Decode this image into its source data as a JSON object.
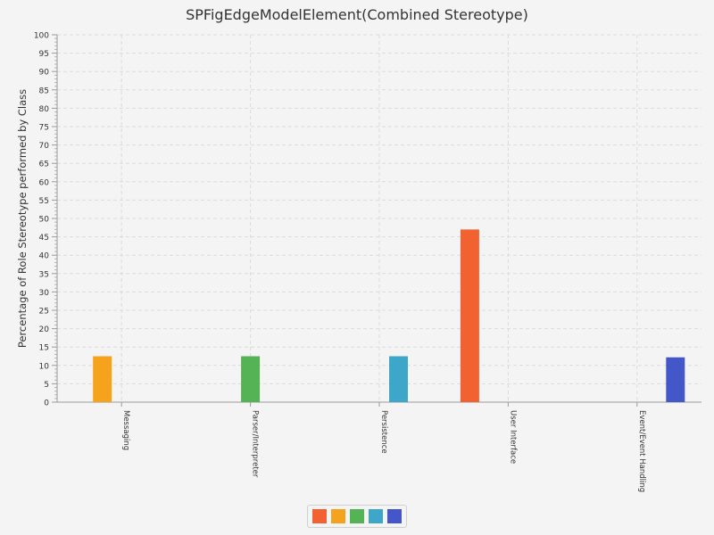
{
  "chart_data": {
    "type": "bar",
    "title": "SPFigEdgeModelElement(Combined Stereotype)",
    "xlabel": "",
    "ylabel": "Percentage of Role Stereotype performed by Class",
    "ylim": [
      0,
      100
    ],
    "ytick_step": 5,
    "grid": true,
    "legend_position": "bottom-center",
    "categories": [
      "Messaging",
      "Parser/Interpreter",
      "Persistence",
      "User Interface",
      "Event/Event Handling"
    ],
    "series": [
      {
        "color": "#f26130",
        "values": [
          0,
          0,
          0,
          47,
          0
        ]
      },
      {
        "color": "#f5a21d",
        "values": [
          12.5,
          0,
          0,
          0,
          0
        ]
      },
      {
        "color": "#55b355",
        "values": [
          0,
          12.5,
          0,
          0,
          0
        ]
      },
      {
        "color": "#3ea6c8",
        "values": [
          0,
          0,
          12.5,
          0,
          0
        ]
      },
      {
        "color": "#4457c8",
        "values": [
          0,
          0,
          0,
          0,
          12.2
        ]
      }
    ]
  }
}
